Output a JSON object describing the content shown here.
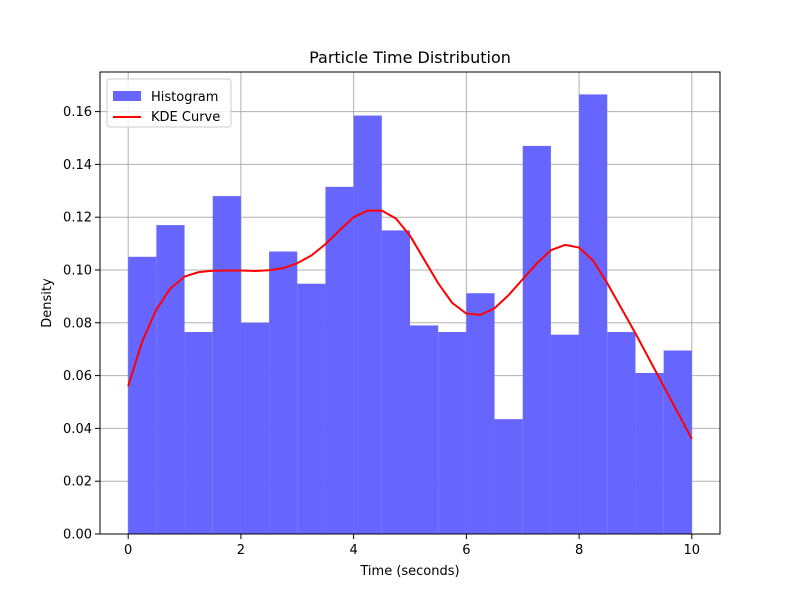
{
  "chart_data": {
    "type": "bar",
    "title": "Particle Time Distribution",
    "xlabel": "Time (seconds)",
    "ylabel": "Density",
    "xlim": [
      -0.5,
      10.5
    ],
    "ylim": [
      0,
      0.175
    ],
    "xticks": [
      0,
      2,
      4,
      6,
      8,
      10
    ],
    "xtick_labels": [
      "0",
      "2",
      "4",
      "6",
      "8",
      "10"
    ],
    "yticks": [
      0,
      0.02,
      0.04,
      0.06,
      0.08,
      0.1,
      0.12,
      0.14,
      0.16
    ],
    "ytick_labels": [
      "0.00",
      "0.02",
      "0.04",
      "0.06",
      "0.08",
      "0.10",
      "0.12",
      "0.14",
      "0.16"
    ],
    "grid": true,
    "legend_position": "top-left",
    "series": [
      {
        "name": "Histogram",
        "type": "histogram",
        "color": "#6666ff",
        "bin_edges": [
          0,
          0.5,
          1.0,
          1.5,
          2.0,
          2.5,
          3.0,
          3.5,
          4.0,
          4.5,
          5.0,
          5.5,
          6.0,
          6.5,
          7.0,
          7.5,
          8.0,
          8.5,
          9.0,
          9.5,
          10.0
        ],
        "values": [
          0.105,
          0.117,
          0.0765,
          0.128,
          0.08,
          0.107,
          0.0948,
          0.1315,
          0.1585,
          0.115,
          0.079,
          0.0765,
          0.0912,
          0.0435,
          0.147,
          0.0755,
          0.1665,
          0.0765,
          0.061,
          0.0695
        ]
      },
      {
        "name": "KDE Curve",
        "type": "line",
        "color": "#ff0000",
        "x": [
          0,
          0.25,
          0.5,
          0.75,
          1.0,
          1.25,
          1.5,
          1.75,
          2.0,
          2.25,
          2.5,
          2.75,
          3.0,
          3.25,
          3.5,
          3.75,
          4.0,
          4.25,
          4.5,
          4.75,
          5.0,
          5.25,
          5.5,
          5.75,
          6.0,
          6.25,
          6.5,
          6.75,
          7.0,
          7.25,
          7.5,
          7.75,
          8.0,
          8.25,
          8.5,
          8.75,
          9.0,
          9.25,
          9.5,
          9.75,
          10.0
        ],
        "y": [
          0.056,
          0.073,
          0.085,
          0.093,
          0.0975,
          0.0992,
          0.0997,
          0.0998,
          0.0998,
          0.0996,
          0.0999,
          0.1007,
          0.1026,
          0.1055,
          0.1098,
          0.115,
          0.12,
          0.1225,
          0.1225,
          0.1195,
          0.113,
          0.104,
          0.095,
          0.0875,
          0.0835,
          0.083,
          0.0855,
          0.0905,
          0.0965,
          0.1025,
          0.1075,
          0.1095,
          0.1085,
          0.1035,
          0.095,
          0.0855,
          0.076,
          0.066,
          0.056,
          0.046,
          0.036
        ]
      }
    ]
  }
}
